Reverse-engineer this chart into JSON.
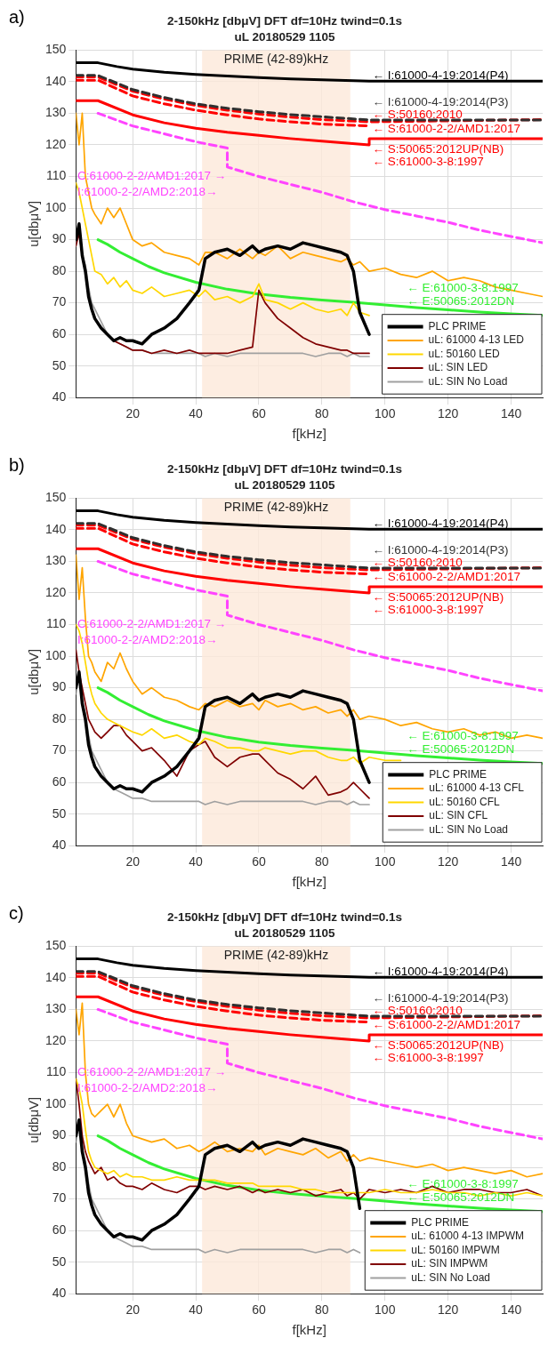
{
  "chart_data": [
    {
      "type": "line",
      "title": "2-150kHz [dbμV] DFT df=10Hz twind=0.1s",
      "subtitle": "uL 20180529 1105",
      "xlabel": "f[kHz]",
      "ylabel": "u[dbμV]",
      "x": [
        2,
        3,
        4,
        5,
        6,
        7,
        8,
        10,
        12,
        14,
        16,
        18,
        20,
        23,
        26,
        30,
        34,
        38,
        41,
        43,
        46,
        50,
        54,
        58,
        60,
        62,
        66,
        70,
        74,
        78,
        82,
        86,
        88,
        90,
        92,
        95,
        100,
        105,
        110,
        115,
        120,
        125,
        130,
        135,
        140,
        145,
        150
      ],
      "xlim": [
        2,
        150
      ],
      "xticks": [
        20,
        40,
        60,
        80,
        100,
        120,
        140
      ],
      "ylim": [
        40,
        150
      ],
      "yticks": [
        40,
        50,
        60,
        70,
        80,
        90,
        100,
        110,
        120,
        130,
        140,
        150
      ],
      "grid": true,
      "legend": "bottom right",
      "bands": [
        {
          "axis": "x",
          "from": 42,
          "to": 89,
          "label": "PRIME (42-89)kHz",
          "color": "#fde9d9"
        }
      ],
      "annotations": [
        "a)",
        "← I:61000-4-19:2014(P4)",
        "← I:61000-4-19:2014(P3)",
        "← S:50160:2010",
        "← S:61000-2-2/AMD1:2017",
        "← S:50065:2012UP(NB)",
        "← S:61000-3-8:1997",
        "← E:61000-3-8:1997",
        "← E:50065:2012DN",
        "C:61000-2-2/AMD1:2017 →",
        "I:61000-2-2/AMD2:2018→"
      ],
      "series": [
        {
          "name": "PLC PRIME",
          "color": "#000000",
          "values": [
            90,
            95,
            85,
            80,
            72,
            68,
            65,
            62,
            60,
            58,
            59,
            58,
            58,
            57,
            60,
            62,
            65,
            70,
            74,
            84,
            86,
            87,
            85,
            88,
            86,
            87,
            88,
            87,
            89,
            88,
            87,
            86,
            85,
            80,
            67,
            60,
            null,
            null,
            null,
            null,
            null,
            null,
            null,
            null,
            null,
            null,
            null
          ]
        },
        {
          "name": "uL: 61000 4-13 LED",
          "color": "#ffa500",
          "values": [
            130,
            120,
            130,
            110,
            105,
            100,
            98,
            95,
            100,
            97,
            100,
            95,
            90,
            88,
            89,
            86,
            85,
            84,
            82,
            86,
            86,
            84,
            87,
            84,
            86,
            85,
            88,
            84,
            86,
            85,
            84,
            83,
            84,
            82,
            83,
            80,
            81,
            79,
            78,
            80,
            77,
            78,
            77,
            75,
            74,
            73,
            72
          ]
        },
        {
          "name": "uL: 50160 LED",
          "color": "#ffd700",
          "values": [
            108,
            105,
            100,
            95,
            90,
            85,
            80,
            79,
            76,
            78,
            75,
            77,
            74,
            73,
            75,
            72,
            73,
            74,
            72,
            74,
            71,
            72,
            70,
            72,
            76,
            71,
            70,
            68,
            70,
            68,
            67,
            68,
            66,
            70,
            67,
            66,
            null,
            null,
            null,
            null,
            null,
            null,
            null,
            null,
            null,
            null,
            null
          ]
        },
        {
          "name": "uL: SIN LED",
          "color": "#800000",
          "values": [
            88,
            92,
            85,
            80,
            72,
            68,
            65,
            62,
            60,
            58,
            57,
            56,
            55,
            55,
            54,
            55,
            54,
            55,
            54,
            54,
            54,
            54,
            55,
            56,
            74,
            70,
            65,
            62,
            59,
            57,
            56,
            55,
            55,
            54,
            54,
            54,
            null,
            null,
            null,
            null,
            null,
            null,
            null,
            null,
            null,
            null,
            null
          ]
        },
        {
          "name": "uL: SIN No Load",
          "color": "#a0a0a0",
          "values": [
            88,
            95,
            85,
            82,
            75,
            70,
            68,
            64,
            60,
            58,
            57,
            56,
            55,
            55,
            54,
            54,
            54,
            54,
            54,
            53,
            54,
            53,
            54,
            54,
            54,
            54,
            54,
            54,
            54,
            53,
            54,
            54,
            53,
            54,
            53,
            53,
            null,
            null,
            null,
            null,
            null,
            null,
            null,
            null,
            null,
            null,
            null
          ]
        },
        {
          "color": "#000000",
          "x": [
            2,
            9,
            15,
            20,
            30,
            40,
            50,
            60,
            70,
            80,
            95,
            150
          ],
          "values": [
            146,
            146,
            144.8,
            144,
            143,
            142.3,
            141.8,
            141.3,
            140.9,
            140.6,
            140.2,
            140.2
          ]
        },
        {
          "color": "#303030",
          "line_style": "dashed",
          "x": [
            2,
            9,
            20,
            30,
            40,
            50,
            60,
            70,
            80,
            95,
            150
          ],
          "values": [
            142,
            142,
            137.5,
            135,
            133,
            131.6,
            130.5,
            129.6,
            128.9,
            127.9,
            127.9
          ]
        },
        {
          "color": "#ff0000",
          "line_style": "dashed",
          "x": [
            2,
            9,
            20,
            30,
            40,
            50,
            60,
            70,
            80,
            95,
            150
          ],
          "values": [
            141.5,
            141.5,
            137,
            134.5,
            132.5,
            131,
            129.8,
            128.8,
            128,
            127.3,
            128
          ]
        },
        {
          "color": "#ff0000",
          "line_style": "dashed",
          "x": [
            2,
            9,
            20,
            30,
            40,
            50,
            60,
            70,
            80,
            95
          ],
          "values": [
            140.5,
            140.5,
            135.5,
            133,
            131,
            129.5,
            128.2,
            127.3,
            126.6,
            126
          ]
        },
        {
          "color": "#ff0000",
          "x": [
            2,
            9,
            20,
            30,
            40,
            50,
            60,
            70,
            80,
            95,
            95,
            150
          ],
          "values": [
            134,
            134,
            129.5,
            127,
            125.3,
            124,
            123,
            122,
            121.2,
            120,
            122,
            122
          ]
        },
        {
          "color": "#33ee33",
          "x": [
            9,
            12,
            16,
            20,
            25,
            30,
            40,
            50,
            60,
            70,
            80,
            90,
            100,
            110,
            120,
            130,
            140,
            150
          ],
          "values": [
            90,
            88.5,
            86,
            84,
            81.5,
            79.5,
            76.5,
            74.3,
            72.8,
            71.7,
            70.9,
            70.2,
            69.3,
            68.5,
            67.8,
            67.1,
            66.5,
            66
          ]
        },
        {
          "color": "#ff44ff",
          "line_style": "dashed",
          "x": [
            9,
            20,
            30,
            40,
            50,
            50,
            60,
            70,
            80,
            90,
            100,
            110,
            120,
            130,
            140,
            150
          ],
          "values": [
            130,
            126,
            123.5,
            121,
            119,
            113,
            110,
            107.5,
            105,
            102,
            99.5,
            97.5,
            95.5,
            93,
            91,
            89
          ]
        }
      ]
    },
    {
      "type": "line",
      "title": "2-150kHz [dbμV] DFT df=10Hz twind=0.1s",
      "subtitle": "uL 20180529 1105",
      "xlabel": "f[kHz]",
      "ylabel": "u[dbμV]",
      "x": [
        2,
        3,
        4,
        5,
        6,
        7,
        8,
        10,
        12,
        14,
        16,
        18,
        20,
        23,
        26,
        30,
        34,
        38,
        41,
        43,
        46,
        50,
        54,
        58,
        60,
        62,
        66,
        70,
        74,
        78,
        82,
        86,
        88,
        90,
        92,
        95,
        100,
        105,
        110,
        115,
        120,
        125,
        130,
        135,
        140,
        145,
        150
      ],
      "xlim": [
        2,
        150
      ],
      "xticks": [
        20,
        40,
        60,
        80,
        100,
        120,
        140
      ],
      "ylim": [
        40,
        150
      ],
      "yticks": [
        40,
        50,
        60,
        70,
        80,
        90,
        100,
        110,
        120,
        130,
        140,
        150
      ],
      "grid": true,
      "legend": "bottom right",
      "bands": [
        {
          "axis": "x",
          "from": 42,
          "to": 89,
          "label": "PRIME (42-89)kHz",
          "color": "#fde9d9"
        }
      ],
      "annotations": [
        "b)",
        "← I:61000-4-19:2014(P4)",
        "← I:61000-4-19:2014(P3)",
        "← S:50160:2010",
        "← S:61000-2-2/AMD1:2017",
        "← S:50065:2012UP(NB)",
        "← S:61000-3-8:1997",
        "← E:61000-3-8:1997",
        "← E:50065:2012DN",
        "C:61000-2-2/AMD1:2017 →",
        "I:61000-2-2/AMD2:2018→"
      ],
      "series": [
        {
          "name": "PLC PRIME",
          "color": "#000000",
          "values": [
            90,
            95,
            85,
            80,
            72,
            68,
            65,
            62,
            60,
            58,
            59,
            58,
            58,
            57,
            60,
            62,
            65,
            70,
            74,
            84,
            86,
            87,
            85,
            88,
            86,
            87,
            88,
            87,
            89,
            88,
            87,
            86,
            85,
            80,
            67,
            60,
            null,
            null,
            null,
            null,
            null,
            null,
            null,
            null,
            null,
            null,
            null
          ]
        },
        {
          "name": "uL: 61000 4-13 CFL",
          "color": "#ffa500",
          "values": [
            132,
            118,
            128,
            112,
            100,
            98,
            95,
            92,
            98,
            96,
            101,
            96,
            92,
            88,
            90,
            87,
            86,
            84,
            83,
            85,
            84,
            86,
            84,
            85,
            83,
            86,
            84,
            85,
            83,
            84,
            82,
            83,
            81,
            83,
            80,
            81,
            80,
            78,
            79,
            77,
            76,
            77,
            75,
            76,
            74,
            75,
            74
          ]
        },
        {
          "name": "uL: 50160 CFL",
          "color": "#ffd700",
          "values": [
            110,
            108,
            104,
            98,
            92,
            88,
            85,
            82,
            80,
            79,
            78,
            77,
            76,
            75,
            77,
            74,
            75,
            73,
            72,
            74,
            73,
            71,
            71,
            70,
            70,
            71,
            70,
            69,
            70,
            70,
            68,
            67,
            67,
            68,
            66,
            68,
            67,
            67,
            null,
            null,
            null,
            null,
            null,
            null,
            null,
            null,
            null
          ]
        },
        {
          "name": "uL: SIN CFL",
          "color": "#800000",
          "values": [
            102,
            95,
            90,
            85,
            80,
            78,
            76,
            74,
            76,
            78,
            78,
            75,
            73,
            70,
            71,
            67,
            62,
            70,
            72,
            73,
            68,
            65,
            68,
            69,
            69,
            67,
            63,
            61,
            58,
            62,
            56,
            57,
            58,
            60,
            58,
            55,
            null,
            null,
            null,
            null,
            null,
            null,
            null,
            null,
            null,
            null,
            null
          ]
        },
        {
          "name": "uL: SIN No Load",
          "color": "#a0a0a0",
          "values": [
            88,
            95,
            85,
            82,
            75,
            70,
            68,
            64,
            60,
            58,
            57,
            56,
            55,
            55,
            54,
            54,
            54,
            54,
            54,
            53,
            54,
            53,
            54,
            54,
            54,
            54,
            54,
            54,
            54,
            53,
            54,
            54,
            53,
            54,
            53,
            53,
            null,
            null,
            null,
            null,
            null,
            null,
            null,
            null,
            null,
            null,
            null
          ]
        },
        {
          "color": "#000000",
          "x": [
            2,
            9,
            15,
            20,
            30,
            40,
            50,
            60,
            70,
            80,
            95,
            150
          ],
          "values": [
            146,
            146,
            144.8,
            144,
            143,
            142.3,
            141.8,
            141.3,
            140.9,
            140.6,
            140.2,
            140.2
          ]
        },
        {
          "color": "#303030",
          "line_style": "dashed",
          "x": [
            2,
            9,
            20,
            30,
            40,
            50,
            60,
            70,
            80,
            95,
            150
          ],
          "values": [
            142,
            142,
            137.5,
            135,
            133,
            131.6,
            130.5,
            129.6,
            128.9,
            127.9,
            127.9
          ]
        },
        {
          "color": "#ff0000",
          "line_style": "dashed",
          "x": [
            2,
            9,
            20,
            30,
            40,
            50,
            60,
            70,
            80,
            95,
            150
          ],
          "values": [
            141.5,
            141.5,
            137,
            134.5,
            132.5,
            131,
            129.8,
            128.8,
            128,
            127.3,
            128
          ]
        },
        {
          "color": "#ff0000",
          "line_style": "dashed",
          "x": [
            2,
            9,
            20,
            30,
            40,
            50,
            60,
            70,
            80,
            95
          ],
          "values": [
            140.5,
            140.5,
            135.5,
            133,
            131,
            129.5,
            128.2,
            127.3,
            126.6,
            126
          ]
        },
        {
          "color": "#ff0000",
          "x": [
            2,
            9,
            20,
            30,
            40,
            50,
            60,
            70,
            80,
            95,
            95,
            150
          ],
          "values": [
            134,
            134,
            129.5,
            127,
            125.3,
            124,
            123,
            122,
            121.2,
            120,
            122,
            122
          ]
        },
        {
          "color": "#33ee33",
          "x": [
            9,
            12,
            16,
            20,
            25,
            30,
            40,
            50,
            60,
            70,
            80,
            90,
            100,
            110,
            120,
            130,
            140,
            150
          ],
          "values": [
            90,
            88.5,
            86,
            84,
            81.5,
            79.5,
            76.5,
            74.3,
            72.8,
            71.7,
            70.9,
            70.2,
            69.3,
            68.5,
            67.8,
            67.1,
            66.5,
            66
          ]
        },
        {
          "color": "#ff44ff",
          "line_style": "dashed",
          "x": [
            9,
            20,
            30,
            40,
            50,
            50,
            60,
            70,
            80,
            90,
            100,
            110,
            120,
            130,
            140,
            150
          ],
          "values": [
            130,
            126,
            123.5,
            121,
            119,
            113,
            110,
            107.5,
            105,
            102,
            99.5,
            97.5,
            95.5,
            93,
            91,
            89
          ]
        }
      ]
    },
    {
      "type": "line",
      "title": "2-150kHz [dbμV] DFT df=10Hz twind=0.1s",
      "subtitle": "uL 20180529 1105",
      "xlabel": "f[kHz]",
      "ylabel": "u[dbμV]",
      "x": [
        2,
        3,
        4,
        5,
        6,
        7,
        8,
        10,
        12,
        14,
        16,
        18,
        20,
        23,
        26,
        30,
        34,
        38,
        41,
        43,
        46,
        50,
        54,
        58,
        60,
        62,
        66,
        70,
        74,
        78,
        82,
        86,
        88,
        90,
        92,
        95,
        100,
        105,
        110,
        115,
        120,
        125,
        130,
        135,
        140,
        145,
        150
      ],
      "xlim": [
        2,
        150
      ],
      "xticks": [
        20,
        40,
        60,
        80,
        100,
        120,
        140
      ],
      "ylim": [
        40,
        150
      ],
      "yticks": [
        40,
        50,
        60,
        70,
        80,
        90,
        100,
        110,
        120,
        130,
        140,
        150
      ],
      "grid": true,
      "legend": "bottom right",
      "bands": [
        {
          "axis": "x",
          "from": 42,
          "to": 89,
          "label": "PRIME (42-89)kHz",
          "color": "#fde9d9"
        }
      ],
      "annotations": [
        "c)",
        "← I:61000-4-19:2014(P4)",
        "← I:61000-4-19:2014(P3)",
        "← S:50160:2010",
        "← S:61000-2-2/AMD1:2017",
        "← S:50065:2012UP(NB)",
        "← S:61000-3-8:1997",
        "← E:61000-3-8:1997",
        "← E:50065:2012DN",
        "C:61000-2-2/AMD1:2017 →",
        "I:61000-2-2/AMD2:2018→"
      ],
      "series": [
        {
          "name": "PLC PRIME",
          "color": "#000000",
          "values": [
            90,
            95,
            85,
            80,
            72,
            68,
            65,
            62,
            60,
            58,
            59,
            58,
            58,
            57,
            60,
            62,
            65,
            70,
            74,
            84,
            86,
            87,
            85,
            88,
            86,
            87,
            88,
            87,
            89,
            88,
            87,
            86,
            85,
            80,
            67,
            null,
            null,
            null,
            null,
            null,
            null,
            null,
            null,
            null,
            null,
            null,
            null
          ]
        },
        {
          "name": "uL: 61000 4-13 IMPWM",
          "color": "#ffa500",
          "values": [
            130,
            122,
            132,
            110,
            100,
            97,
            96,
            98,
            100,
            96,
            100,
            94,
            90,
            89,
            88,
            89,
            86,
            87,
            85,
            86,
            88,
            85,
            86,
            85,
            87,
            84,
            86,
            85,
            84,
            86,
            83,
            85,
            82,
            84,
            82,
            83,
            82,
            81,
            80,
            81,
            79,
            80,
            79,
            78,
            79,
            77,
            78
          ]
        },
        {
          "name": "uL: 50160 IMPWM",
          "color": "#ffd700",
          "values": [
            108,
            105,
            100,
            92,
            85,
            82,
            80,
            79,
            78,
            79,
            77,
            78,
            77,
            77,
            76,
            76,
            77,
            76,
            76,
            76,
            76,
            75,
            75,
            75,
            74,
            74,
            74,
            74,
            73,
            73,
            72,
            72,
            72,
            72,
            72,
            72,
            73,
            72,
            72,
            73,
            72,
            72,
            71,
            72,
            71,
            72,
            71
          ]
        },
        {
          "name": "uL: SIN IMPWM",
          "color": "#800000",
          "values": [
            108,
            100,
            90,
            85,
            82,
            80,
            78,
            80,
            76,
            77,
            75,
            74,
            74,
            73,
            75,
            73,
            72,
            74,
            74,
            73,
            74,
            73,
            74,
            72,
            73,
            72,
            73,
            72,
            73,
            71,
            72,
            73,
            71,
            72,
            70,
            73,
            72,
            73,
            72,
            74,
            72,
            73,
            73,
            72,
            72,
            73,
            71
          ]
        },
        {
          "name": "uL: SIN No Load",
          "color": "#a0a0a0",
          "values": [
            88,
            95,
            85,
            82,
            75,
            70,
            68,
            64,
            60,
            58,
            57,
            56,
            55,
            55,
            54,
            54,
            54,
            54,
            54,
            53,
            54,
            53,
            54,
            54,
            54,
            54,
            54,
            54,
            54,
            53,
            54,
            54,
            53,
            54,
            53,
            null,
            null,
            null,
            null,
            null,
            null,
            null,
            null,
            null,
            null,
            null,
            null
          ]
        },
        {
          "color": "#000000",
          "x": [
            2,
            9,
            15,
            20,
            30,
            40,
            50,
            60,
            70,
            80,
            95,
            150
          ],
          "values": [
            146,
            146,
            144.8,
            144,
            143,
            142.3,
            141.8,
            141.3,
            140.9,
            140.6,
            140.2,
            140.2
          ]
        },
        {
          "color": "#303030",
          "line_style": "dashed",
          "x": [
            2,
            9,
            20,
            30,
            40,
            50,
            60,
            70,
            80,
            95,
            150
          ],
          "values": [
            142,
            142,
            137.5,
            135,
            133,
            131.6,
            130.5,
            129.6,
            128.9,
            127.9,
            127.9
          ]
        },
        {
          "color": "#ff0000",
          "line_style": "dashed",
          "x": [
            2,
            9,
            20,
            30,
            40,
            50,
            60,
            70,
            80,
            95,
            150
          ],
          "values": [
            141.5,
            141.5,
            137,
            134.5,
            132.5,
            131,
            129.8,
            128.8,
            128,
            127.3,
            128
          ]
        },
        {
          "color": "#ff0000",
          "line_style": "dashed",
          "x": [
            2,
            9,
            20,
            30,
            40,
            50,
            60,
            70,
            80,
            95
          ],
          "values": [
            140.5,
            140.5,
            135.5,
            133,
            131,
            129.5,
            128.2,
            127.3,
            126.6,
            126
          ]
        },
        {
          "color": "#ff0000",
          "x": [
            2,
            9,
            20,
            30,
            40,
            50,
            60,
            70,
            80,
            95,
            95,
            150
          ],
          "values": [
            134,
            134,
            129.5,
            127,
            125.3,
            124,
            123,
            122,
            121.2,
            120,
            122,
            122
          ]
        },
        {
          "color": "#33ee33",
          "x": [
            9,
            12,
            16,
            20,
            25,
            30,
            40,
            50,
            60,
            70,
            80,
            90,
            100,
            110,
            120,
            130,
            140,
            150
          ],
          "values": [
            90,
            88.5,
            86,
            84,
            81.5,
            79.5,
            76.5,
            74.3,
            72.8,
            71.7,
            70.9,
            70.2,
            69.3,
            68.5,
            67.8,
            67.1,
            66.5,
            66
          ]
        },
        {
          "color": "#ff44ff",
          "line_style": "dashed",
          "x": [
            9,
            20,
            30,
            40,
            50,
            50,
            60,
            70,
            80,
            90,
            100,
            110,
            120,
            130,
            140,
            150
          ],
          "values": [
            130,
            126,
            123.5,
            121,
            119,
            113,
            110,
            107.5,
            105,
            102,
            99.5,
            97.5,
            95.5,
            93,
            91,
            89
          ]
        }
      ]
    }
  ]
}
